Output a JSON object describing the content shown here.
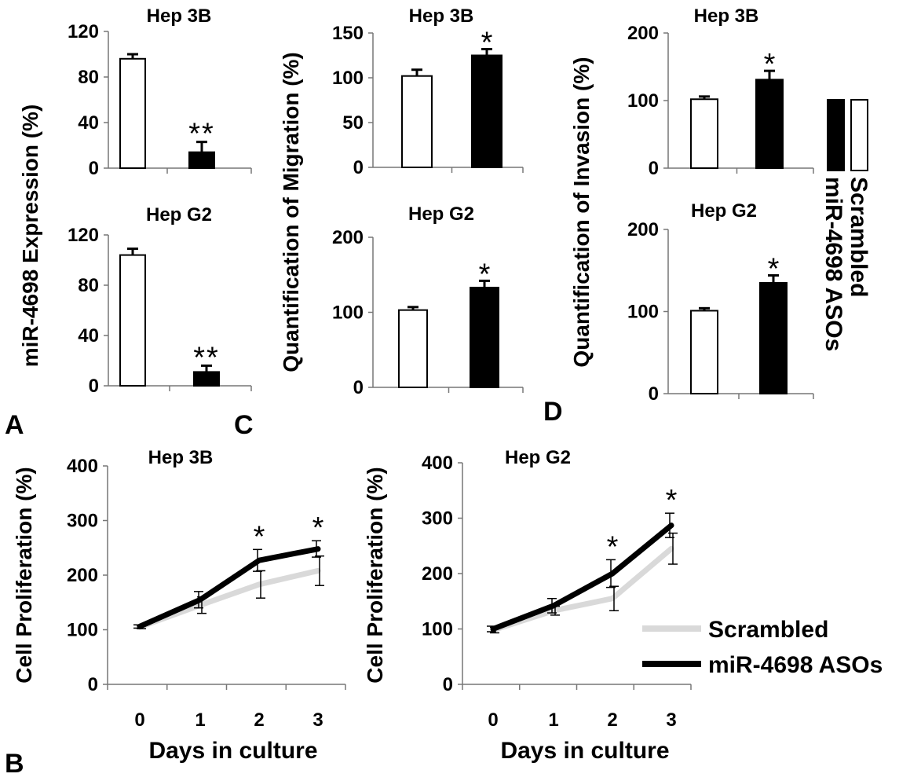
{
  "panel_letters": {
    "a": "A",
    "b": "B",
    "c": "C",
    "d": "D"
  },
  "legend_bars": {
    "items": [
      {
        "label": "Scrambled",
        "color": "#ffffff"
      },
      {
        "label": "miR-4698 ASOs",
        "color": "#000000"
      }
    ]
  },
  "legend_lines": {
    "items": [
      {
        "label": "Scrambled",
        "color": "#d9d9d9"
      },
      {
        "label": "miR-4698 ASOs",
        "color": "#000000"
      }
    ]
  },
  "chart_data": [
    {
      "id": "a1",
      "type": "bar",
      "title": "Hep 3B",
      "ylabel": "miR-4698 Expression (%)",
      "ylim": [
        0,
        120
      ],
      "yticks": [
        0,
        40,
        80,
        120
      ],
      "categories": [
        "Scrambled",
        "miR-4698 ASOs"
      ],
      "values": [
        96,
        14
      ],
      "errors": [
        4,
        9
      ],
      "colors": [
        "#ffffff",
        "#000000"
      ],
      "annotations": [
        "",
        "**"
      ]
    },
    {
      "id": "a2",
      "type": "bar",
      "title": "Hep G2",
      "ylabel": "",
      "ylim": [
        0,
        120
      ],
      "yticks": [
        0,
        40,
        80,
        120
      ],
      "categories": [
        "Scrambled",
        "miR-4698 ASOs"
      ],
      "values": [
        104,
        11
      ],
      "errors": [
        5,
        5
      ],
      "colors": [
        "#ffffff",
        "#000000"
      ],
      "annotations": [
        "",
        "**"
      ]
    },
    {
      "id": "c1",
      "type": "bar",
      "title": "Hep 3B",
      "ylabel": "Quantification of Migration (%)",
      "ylim": [
        0,
        150
      ],
      "yticks": [
        0,
        50,
        100,
        150
      ],
      "categories": [
        "Scrambled",
        "miR-4698 ASOs"
      ],
      "values": [
        102,
        125
      ],
      "errors": [
        7,
        7
      ],
      "colors": [
        "#ffffff",
        "#000000"
      ],
      "annotations": [
        "",
        "*"
      ]
    },
    {
      "id": "c2",
      "type": "bar",
      "title": "Hep G2",
      "ylabel": "",
      "ylim": [
        0,
        200
      ],
      "yticks": [
        0,
        100,
        200
      ],
      "categories": [
        "Scrambled",
        "miR-4698 ASOs"
      ],
      "values": [
        103,
        133
      ],
      "errors": [
        4,
        9
      ],
      "colors": [
        "#ffffff",
        "#000000"
      ],
      "annotations": [
        "",
        "*"
      ]
    },
    {
      "id": "d1",
      "type": "bar",
      "title": "Hep 3B",
      "ylabel": "Quantification of Invasion  (%)",
      "ylim": [
        0,
        200
      ],
      "yticks": [
        0,
        100,
        200
      ],
      "categories": [
        "Scrambled",
        "miR-4698 ASOs"
      ],
      "values": [
        102,
        131
      ],
      "errors": [
        4,
        13
      ],
      "colors": [
        "#ffffff",
        "#000000"
      ],
      "annotations": [
        "",
        "*"
      ]
    },
    {
      "id": "d2",
      "type": "bar",
      "title": "Hep G2",
      "ylabel": "",
      "ylim": [
        0,
        200
      ],
      "yticks": [
        0,
        100,
        200
      ],
      "categories": [
        "Scrambled",
        "miR-4698 ASOs"
      ],
      "values": [
        101,
        135
      ],
      "errors": [
        3,
        9
      ],
      "colors": [
        "#ffffff",
        "#000000"
      ],
      "annotations": [
        "",
        "*"
      ]
    },
    {
      "id": "b1",
      "type": "line",
      "title": "Hep 3B",
      "xlabel": "Days in culture",
      "ylabel": "Cell Proliferation (%)",
      "ylim": [
        0,
        400
      ],
      "yticks": [
        0,
        100,
        200,
        300,
        400
      ],
      "x": [
        0,
        1,
        2,
        3
      ],
      "series": [
        {
          "name": "Scrambled",
          "color": "#d9d9d9",
          "values": [
            105,
            145,
            183,
            208
          ],
          "errors": [
            3,
            15,
            25,
            27
          ]
        },
        {
          "name": "miR-4698 ASOs",
          "color": "#000000",
          "values": [
            106,
            155,
            227,
            248
          ],
          "errors": [
            3,
            15,
            20,
            15
          ]
        }
      ],
      "annotations": [
        {
          "x": 2,
          "text": "*"
        },
        {
          "x": 3,
          "text": "*"
        }
      ]
    },
    {
      "id": "b2",
      "type": "line",
      "title": "Hep G2",
      "xlabel": "Days in culture",
      "ylabel": "Cell Proliferation (%)",
      "ylim": [
        0,
        400
      ],
      "yticks": [
        0,
        100,
        200,
        300,
        400
      ],
      "x": [
        0,
        1,
        2,
        3
      ],
      "series": [
        {
          "name": "Scrambled",
          "color": "#d9d9d9",
          "values": [
            98,
            133,
            155,
            245
          ],
          "errors": [
            5,
            8,
            22,
            28
          ]
        },
        {
          "name": "miR-4698 ASOs",
          "color": "#000000",
          "values": [
            100,
            142,
            200,
            287
          ],
          "errors": [
            5,
            13,
            25,
            22
          ]
        }
      ],
      "annotations": [
        {
          "x": 2,
          "text": "*"
        },
        {
          "x": 3,
          "text": "*"
        }
      ]
    }
  ]
}
